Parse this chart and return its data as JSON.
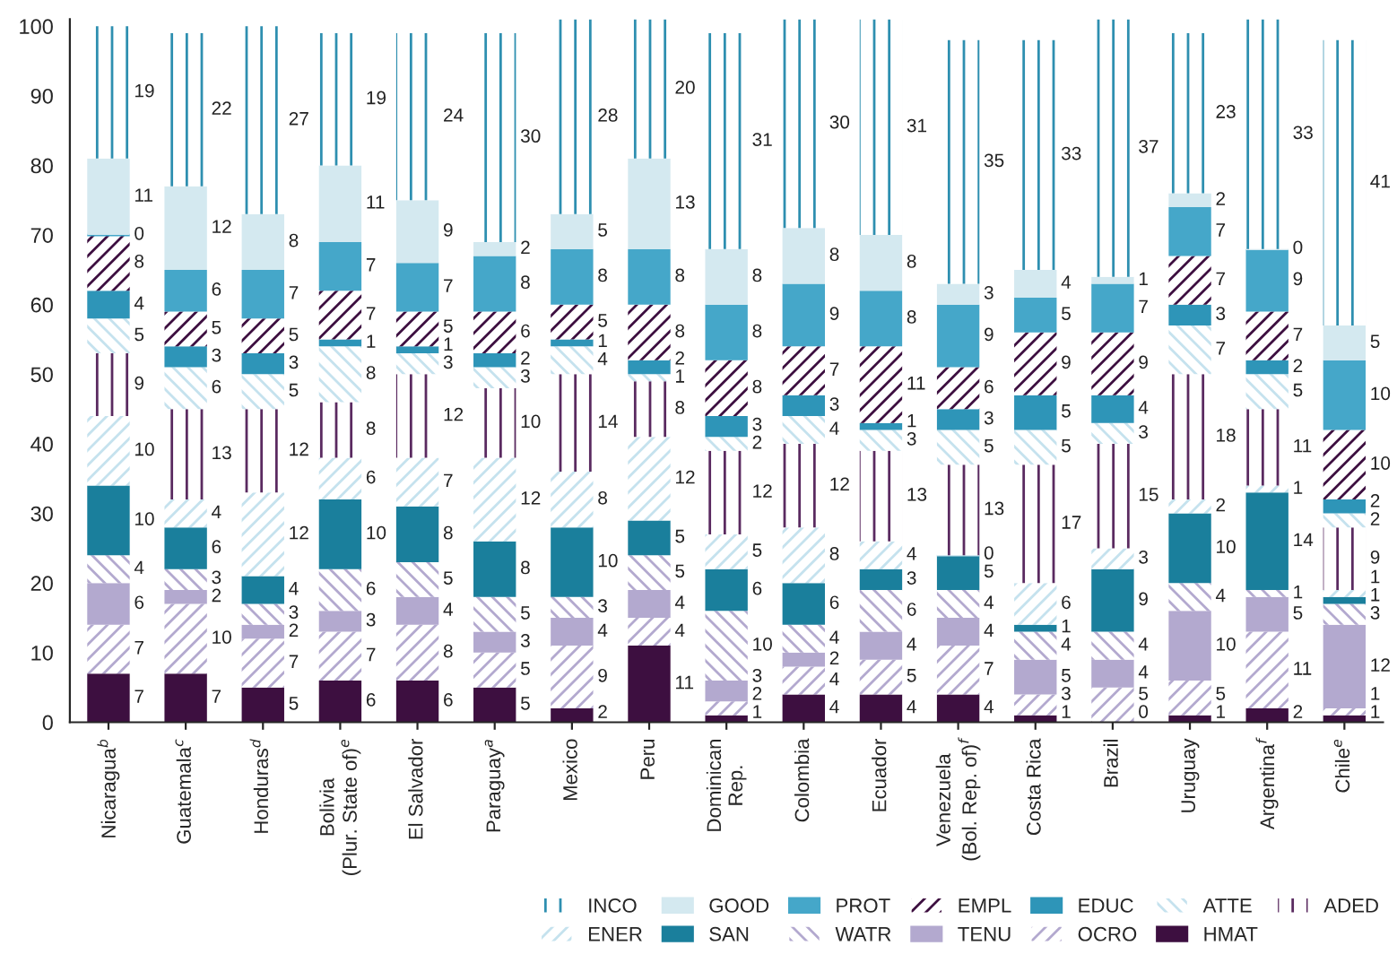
{
  "chart_data": {
    "type": "bar",
    "stacked": true,
    "categories": [
      "Nicaragua$^{b}$",
      "Guatemala$^{c}$",
      "Honduras$^{d}$",
      "Bolivia\n(Plur. State of)$^{e}$",
      "El Salvador",
      "Paraguay$^{a}$",
      "Mexico",
      "Peru",
      "Dominican\nRep.",
      "Colombia",
      "Ecuador",
      "Venezuela\n(Bol. Rep. of)$^{f}$",
      "Costa Rica",
      "Brazil",
      "Uruguay",
      "Argentina$^{f}$",
      "Chile$^{e}$"
    ],
    "series": [
      {
        "name": "HMAT",
        "color": "#3d0f40",
        "values": [
          7,
          7,
          5,
          6,
          6,
          5,
          2,
          11,
          1,
          4,
          4,
          4,
          1,
          0,
          1,
          2,
          1
        ]
      },
      {
        "name": "OCRO",
        "color": "#b3a9cf",
        "values": [
          7,
          10,
          7,
          7,
          8,
          5,
          9,
          4,
          2,
          4,
          5,
          7,
          3,
          5,
          5,
          11,
          1
        ]
      },
      {
        "name": "TENU",
        "color": "#b3a9cf",
        "values": [
          6,
          2,
          2,
          3,
          4,
          3,
          4,
          4,
          3,
          2,
          4,
          4,
          5,
          4,
          10,
          5,
          12
        ]
      },
      {
        "name": "WATR",
        "color": "#b3a9cf",
        "values": [
          4,
          3,
          3,
          6,
          5,
          5,
          3,
          5,
          10,
          4,
          6,
          4,
          4,
          4,
          4,
          1,
          3
        ]
      },
      {
        "name": "SAN",
        "color": "#1a7f9c",
        "values": [
          10,
          6,
          4,
          10,
          8,
          8,
          10,
          5,
          6,
          6,
          3,
          5,
          1,
          9,
          10,
          14,
          1
        ]
      },
      {
        "name": "ENER",
        "color": "#c5e2ee",
        "values": [
          10,
          4,
          12,
          6,
          7,
          12,
          8,
          12,
          5,
          8,
          4,
          0,
          6,
          3,
          2,
          1,
          1
        ]
      },
      {
        "name": "ADED",
        "color": "#5a2a60",
        "values": [
          9,
          13,
          12,
          8,
          12,
          10,
          14,
          8,
          12,
          12,
          13,
          13,
          17,
          15,
          18,
          11,
          9
        ]
      },
      {
        "name": "ATTE",
        "color": "#c5e2ee",
        "values": [
          5,
          6,
          5,
          8,
          3,
          3,
          4,
          1,
          2,
          4,
          3,
          5,
          5,
          3,
          7,
          5,
          2
        ]
      },
      {
        "name": "EDUC",
        "color": "#2e95b8",
        "values": [
          4,
          3,
          3,
          1,
          1,
          2,
          1,
          2,
          3,
          3,
          1,
          3,
          5,
          4,
          3,
          2,
          2
        ]
      },
      {
        "name": "EMPL",
        "color": "#3d0f40",
        "values": [
          8,
          5,
          5,
          7,
          5,
          6,
          5,
          8,
          8,
          7,
          11,
          6,
          9,
          9,
          7,
          7,
          10
        ]
      },
      {
        "name": "PROT",
        "color": "#45a7c9",
        "values": [
          0,
          6,
          7,
          7,
          7,
          8,
          8,
          8,
          8,
          9,
          8,
          9,
          5,
          7,
          7,
          9,
          10
        ]
      },
      {
        "name": "GOOD",
        "color": "#d4e9f0",
        "values": [
          11,
          12,
          8,
          11,
          9,
          2,
          5,
          13,
          8,
          8,
          8,
          3,
          4,
          1,
          2,
          0,
          5
        ]
      },
      {
        "name": "INCO",
        "color": "#2e8fb0",
        "values": [
          19,
          22,
          27,
          19,
          24,
          30,
          28,
          20,
          31,
          30,
          31,
          35,
          33,
          37,
          23,
          33,
          41
        ]
      }
    ],
    "ylim": [
      0,
      101
    ],
    "yticks": [
      0,
      10,
      20,
      30,
      40,
      50,
      60,
      70,
      80,
      90,
      100
    ],
    "data_labels": true,
    "legend": "bottom right",
    "grid": false
  }
}
